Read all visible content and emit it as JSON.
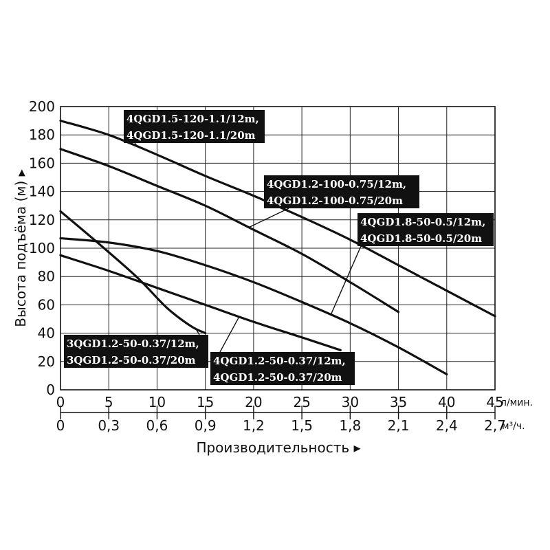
{
  "chart_data": {
    "type": "line",
    "ylabel": "Высота подъёма (м) ▸",
    "xlabel": "Производительность ▸",
    "x_unit_primary": "л/мин.",
    "x_unit_secondary": "м³/ч.",
    "xlim": [
      0,
      45
    ],
    "ylim": [
      0,
      200
    ],
    "x_ticks": [
      "0",
      "5",
      "10",
      "15",
      "20",
      "25",
      "30",
      "35",
      "40",
      "45"
    ],
    "x_ticks_secondary": [
      "0",
      "0,3",
      "0,6",
      "0,9",
      "1,2",
      "1,5",
      "1,8",
      "2,1",
      "2,4",
      "2,7"
    ],
    "y_ticks": [
      "0",
      "20",
      "40",
      "60",
      "80",
      "100",
      "120",
      "140",
      "160",
      "180",
      "200"
    ],
    "grid": true,
    "series": [
      {
        "labels": [
          "4QGD1.5-120-1.1/12m,",
          "4QGD1.5-120-1.1/20m"
        ],
        "x": [
          0,
          5,
          10,
          15,
          20,
          25,
          30,
          35,
          40,
          45
        ],
        "y": [
          190,
          180,
          166,
          151,
          137,
          122,
          106,
          88,
          70,
          52
        ]
      },
      {
        "labels": [
          "4QGD1.2-100-0.75/12m,",
          "4QGD1.2-100-0.75/20m"
        ],
        "x": [
          0,
          5,
          10,
          15,
          20,
          25,
          30,
          35
        ],
        "y": [
          170,
          158,
          144,
          130,
          113,
          96,
          76,
          55
        ]
      },
      {
        "labels": [
          "4QGD1.8-50-0.5/12m,",
          "4QGD1.8-50-0.5/20m"
        ],
        "x": [
          0,
          5,
          10,
          15,
          20,
          25,
          30,
          35,
          40
        ],
        "y": [
          107,
          104,
          98,
          88,
          76,
          62,
          47,
          30,
          11
        ]
      },
      {
        "labels": [
          "3QGD1.2-50-0.37/12m,",
          "3QGD1.2-50-0.37/20m"
        ],
        "x": [
          0,
          4,
          8,
          11,
          13.5,
          15
        ],
        "y": [
          126,
          103,
          79,
          58,
          45,
          40
        ]
      },
      {
        "labels": [
          "4QGD1.2-50-0.37/12m,",
          "4QGD1.2-50-0.37/20m"
        ],
        "x": [
          0,
          5,
          10,
          15,
          20,
          25,
          29
        ],
        "y": [
          95,
          84,
          72,
          60,
          48,
          37,
          28
        ]
      }
    ]
  }
}
